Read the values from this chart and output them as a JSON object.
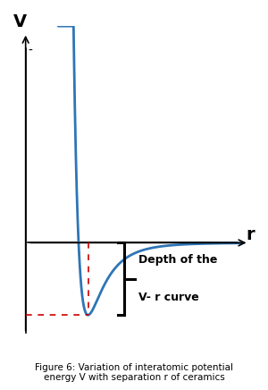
{
  "title": "Figure 6: Variation of interatomic potential\nenergy V with separation r of ceramics",
  "xlabel": "r",
  "ylabel": "V",
  "ylabel_minus": "-",
  "curve_color": "#2E75B6",
  "dashed_color": "#CC0000",
  "bracket_color": "#000000",
  "depth_label_line1": "Depth of the",
  "depth_label_line2": "V- r curve",
  "background_color": "#ffffff",
  "yax_x": 0.5,
  "r0": 1.8,
  "depth": -1.6,
  "bracket_x": 2.55,
  "arrow_color": "#000000",
  "xlim": [
    0.45,
    5.2
  ],
  "ylim": [
    -2.1,
    4.8
  ]
}
